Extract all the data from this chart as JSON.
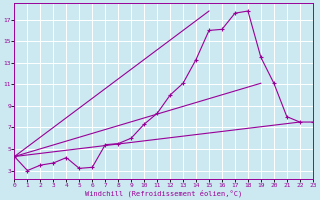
{
  "xlabel": "Windchill (Refroidissement éolien,°C)",
  "x_ticks": [
    0,
    1,
    2,
    3,
    4,
    5,
    6,
    7,
    8,
    9,
    10,
    11,
    12,
    13,
    14,
    15,
    16,
    17,
    18,
    19,
    20,
    21,
    22,
    23
  ],
  "y_ticks": [
    3,
    5,
    7,
    9,
    11,
    13,
    15,
    17
  ],
  "ylim": [
    2.2,
    18.5
  ],
  "xlim": [
    0,
    23
  ],
  "bg_color": "#cce8f0",
  "line_color": "#990099",
  "grid_color": "#ffffff",
  "main_line": [
    4.3,
    3.0,
    3.5,
    3.7,
    4.2,
    3.2,
    3.3,
    5.4,
    5.5,
    6.0,
    7.3,
    8.3,
    10.0,
    11.1,
    13.3,
    16.0,
    16.1,
    17.6,
    17.8,
    13.5,
    11.1,
    8.0,
    7.5,
    7.5
  ],
  "fan_lines": [
    [
      [
        0,
        4.3
      ],
      [
        15,
        17.8
      ]
    ],
    [
      [
        0,
        4.3
      ],
      [
        19,
        11.1
      ]
    ],
    [
      [
        0,
        4.3
      ],
      [
        22,
        7.5
      ]
    ]
  ]
}
